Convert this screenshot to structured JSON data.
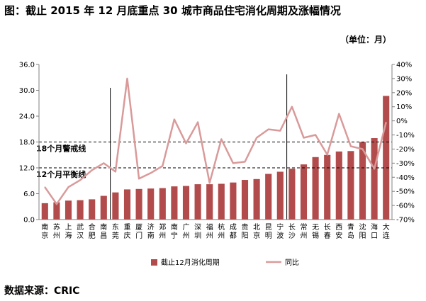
{
  "title": "图：截止 2015 年 12 月底重点 30 城市商品住宅消化周期及涨幅情况",
  "unit": "（单位：月）",
  "source": "数据来源：CRIC",
  "colors": {
    "bar": "#b24c4c",
    "line": "#d99a9a",
    "axis": "#808080",
    "dash": "#000000"
  },
  "chart_data": {
    "type": "bar+line",
    "categories": [
      "南京",
      "苏州",
      "上海",
      "武汉",
      "合肥",
      "南昌",
      "东莞",
      "重庆",
      "厦门",
      "济南",
      "郑州",
      "南宁",
      "广州",
      "深圳",
      "福州",
      "杭州",
      "成都",
      "贵阳",
      "北京",
      "昆明",
      "宁波",
      "长沙",
      "常州",
      "无锡",
      "长春",
      "西安",
      "青岛",
      "沈阳",
      "海口",
      "大连"
    ],
    "series": [
      {
        "name": "截止12月消化周期",
        "type": "bar",
        "axis": "left",
        "values": [
          3.8,
          4.0,
          4.4,
          4.5,
          4.7,
          5.5,
          6.3,
          7.0,
          7.1,
          7.2,
          7.3,
          7.7,
          7.8,
          8.2,
          8.2,
          8.3,
          8.6,
          9.2,
          9.4,
          10.6,
          11.1,
          11.8,
          12.8,
          14.5,
          15.0,
          15.8,
          15.9,
          18.0,
          18.9,
          28.7
        ]
      },
      {
        "name": "同比",
        "type": "line",
        "axis": "right",
        "values": [
          -47,
          -59,
          -47,
          -42,
          -35,
          -30,
          -36,
          30,
          -41,
          -37,
          -32,
          1,
          -16,
          -1,
          -44,
          -13,
          -30,
          -29,
          -12,
          -6,
          -7,
          10,
          -12,
          -10,
          -24,
          5,
          -18,
          -20,
          -34,
          -1
        ]
      }
    ],
    "y_left": {
      "min": 0,
      "max": 36,
      "ticks": [
        "0.0",
        "6.0",
        "12.0",
        "18.0",
        "24.0",
        "30.0",
        "36.0"
      ]
    },
    "y_right": {
      "min": -70,
      "max": 40,
      "ticks": [
        "-70%",
        "-60%",
        "-50%",
        "-40%",
        "-30%",
        "-20%",
        "-10%",
        "0%",
        "10%",
        "20%",
        "30%",
        "40%"
      ]
    },
    "reference_lines": [
      {
        "value": 18,
        "label": "18个月警戒线"
      },
      {
        "value": 12,
        "label": "12个月平衡线"
      }
    ],
    "vertical_markers": [
      {
        "after_category": "南昌"
      },
      {
        "after_category": "宁波"
      }
    ],
    "legend": [
      "截止12月消化周期",
      "同比"
    ]
  }
}
